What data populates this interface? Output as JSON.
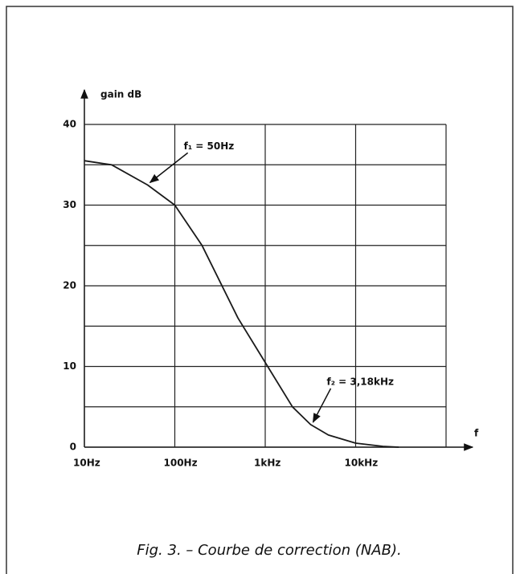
{
  "chart_data": {
    "type": "line",
    "title": "Fig. 3. – Courbe de correction (NAB).",
    "ylabel": "gain  dB",
    "xlabel": "f",
    "xscale": "log",
    "xlim": [
      10,
      100000
    ],
    "xticks": [
      {
        "value": 10,
        "label": "10Hz"
      },
      {
        "value": 100,
        "label": "100Hz"
      },
      {
        "value": 1000,
        "label": "1kHz"
      },
      {
        "value": 10000,
        "label": "10kHz"
      }
    ],
    "xgrid": [
      10,
      100,
      1000,
      10000,
      100000
    ],
    "ylim": [
      0,
      40
    ],
    "yticks": [
      0,
      10,
      20,
      30,
      40
    ],
    "ygrid": [
      0,
      5,
      10,
      15,
      20,
      25,
      30,
      35,
      40
    ],
    "grid": true,
    "series": [
      {
        "color": "#1a1a1a",
        "x": [
          10,
          20,
          50,
          100,
          200,
          500,
          1000,
          2000,
          3180,
          5000,
          10000,
          20000,
          30000
        ],
        "values": [
          35.5,
          35,
          32.5,
          30,
          25,
          16,
          10.5,
          5,
          2.8,
          1.5,
          0.5,
          0.1,
          0
        ]
      }
    ],
    "annotations": [
      {
        "label": "f₁ = 50Hz",
        "x": 50,
        "y": 32.5
      },
      {
        "label": "f₂ = 3,18kHz",
        "x": 3180,
        "y": 2.8
      }
    ]
  }
}
